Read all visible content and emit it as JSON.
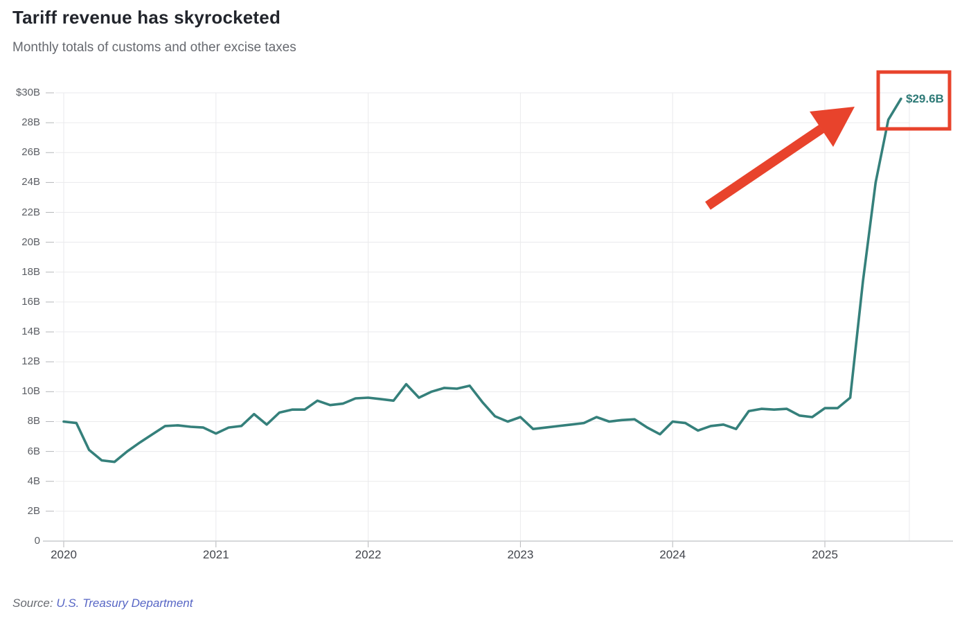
{
  "header": {
    "title": "Tariff revenue has skyrocketed",
    "subtitle": "Monthly totals of customs and other excise taxes"
  },
  "chart_data": {
    "type": "line",
    "title": "Tariff revenue has skyrocketed",
    "subtitle": "Monthly totals of customs and other excise taxes",
    "x_start": "2020-01",
    "x_end": "2025-07",
    "unit": "billions of USD per month",
    "ylim": [
      0,
      30
    ],
    "grid": "on",
    "legend": "none",
    "series": [
      {
        "name": "Customs and other excise taxes, monthly total ($B)",
        "color": "#35807b",
        "values": [
          8.0,
          7.9,
          6.1,
          5.4,
          5.3,
          6.0,
          6.6,
          7.15,
          7.7,
          7.75,
          7.65,
          7.6,
          7.2,
          7.6,
          7.7,
          8.5,
          7.8,
          8.6,
          8.8,
          8.8,
          9.4,
          9.1,
          9.2,
          9.55,
          9.6,
          9.5,
          9.4,
          10.5,
          9.6,
          10.0,
          10.25,
          10.2,
          10.4,
          9.3,
          8.35,
          8.0,
          8.3,
          7.5,
          7.6,
          7.7,
          7.8,
          7.9,
          8.3,
          8.0,
          8.1,
          8.15,
          7.6,
          7.15,
          8.0,
          7.9,
          7.4,
          7.7,
          7.8,
          7.5,
          8.7,
          8.85,
          8.8,
          8.85,
          8.4,
          8.3,
          8.9,
          8.9,
          9.6,
          17.4,
          24.0,
          28.2,
          29.6
        ]
      }
    ],
    "y_axis": {
      "tick_values": [
        0,
        2,
        4,
        6,
        8,
        10,
        12,
        14,
        16,
        18,
        20,
        22,
        24,
        26,
        28,
        30
      ],
      "tick_labels": [
        "0",
        "2B",
        "4B",
        "6B",
        "8B",
        "10B",
        "12B",
        "14B",
        "16B",
        "18B",
        "20B",
        "22B",
        "24B",
        "26B",
        "28B",
        "$30B"
      ]
    },
    "x_axis": {
      "tick_values": [
        2020,
        2021,
        2022,
        2023,
        2024,
        2025
      ],
      "tick_labels": [
        "2020",
        "2021",
        "2022",
        "2023",
        "2024",
        "2025"
      ]
    },
    "annotation": {
      "label": "$29.6B",
      "point": "2025-07",
      "value": 29.6,
      "label_color": "#2e7a77",
      "highlight_color": "#e8432c"
    }
  },
  "source": {
    "prefix": "Source:",
    "link": "U.S. Treasury Department"
  }
}
